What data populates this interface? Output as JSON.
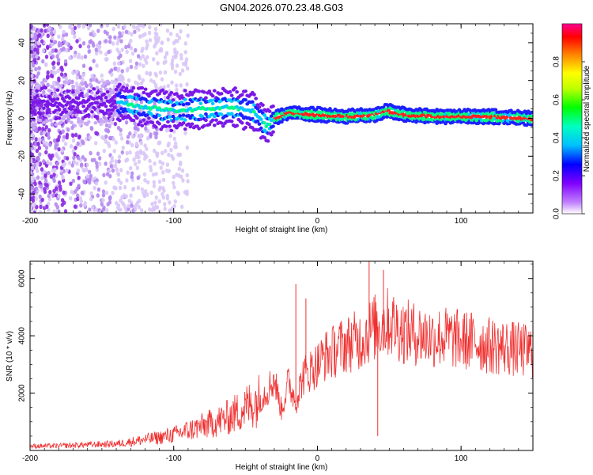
{
  "title": "GN04.2026.070.23.48.G03",
  "chart_data": [
    {
      "type": "heatmap",
      "name": "spectrogram",
      "xlabel": "Height of straight line (km)",
      "ylabel": "Frequency (Hz)",
      "xlim": [
        -200,
        150
      ],
      "ylim": [
        -50,
        50
      ],
      "xticks": [
        -200,
        -100,
        0,
        100
      ],
      "xtick_labels": [
        "-200",
        "-100",
        "0",
        "100"
      ],
      "yticks": [
        -40,
        -20,
        0,
        20,
        40
      ],
      "ytick_labels": [
        "-40",
        "-20",
        "0",
        "20",
        "40"
      ],
      "colorbar": {
        "label": "Normalized spectral amplitude",
        "range": [
          0.0,
          1.0
        ],
        "ticks": [
          0.0,
          0.2,
          0.4,
          0.6,
          0.8
        ],
        "tick_labels": [
          "0.0",
          "0.2",
          "0.4",
          "0.6",
          "0.8"
        ],
        "colors": [
          "#ffffff",
          "#a000ff",
          "#0000ff",
          "#00ffff",
          "#00ff00",
          "#ffff00",
          "#ff8000",
          "#ff0000",
          "#ff0090"
        ]
      },
      "ridge": {
        "x": [
          -135,
          -120,
          -100,
          -80,
          -60,
          -45,
          -38,
          -35,
          -30,
          -20,
          0,
          20,
          40,
          48,
          60,
          80,
          100,
          120,
          150
        ],
        "y": [
          8,
          6,
          4,
          5,
          6,
          4,
          -2,
          -4,
          0,
          3,
          2,
          1,
          2,
          4,
          2,
          1,
          1,
          1,
          0
        ]
      }
    },
    {
      "type": "line",
      "name": "snr",
      "xlabel": "Height of straight line (km)",
      "ylabel": "SNR (10 * v/v)",
      "xlim": [
        -200,
        150
      ],
      "ylim": [
        0,
        6600
      ],
      "xticks": [
        -200,
        -100,
        0,
        100
      ],
      "xtick_labels": [
        "-200",
        "-100",
        "0",
        "100"
      ],
      "yticks": [
        2000,
        4000,
        6000
      ],
      "ytick_labels": [
        "2000",
        "4000",
        "6000"
      ],
      "color": "#f03030",
      "series": [
        {
          "name": "SNR",
          "x": [
            -200,
            -180,
            -160,
            -140,
            -130,
            -120,
            -110,
            -100,
            -90,
            -80,
            -70,
            -60,
            -50,
            -40,
            -35,
            -30,
            -25,
            -20,
            -15,
            -10,
            -5,
            0,
            5,
            10,
            15,
            20,
            25,
            30,
            35,
            40,
            45,
            50,
            55,
            60,
            70,
            80,
            90,
            100,
            110,
            120,
            130,
            140,
            150
          ],
          "y": [
            150,
            160,
            200,
            230,
            300,
            380,
            450,
            550,
            700,
            850,
            1000,
            1200,
            1500,
            1800,
            2100,
            2500,
            1400,
            2400,
            1700,
            2600,
            2800,
            3000,
            3300,
            3400,
            3600,
            3700,
            3800,
            3850,
            4100,
            4300,
            4350,
            4500,
            4300,
            4150,
            4050,
            3950,
            3950,
            3850,
            3800,
            3650,
            3600,
            3500,
            3450
          ]
        }
      ],
      "spikes": [
        {
          "x": -15,
          "y": 5800
        },
        {
          "x": 36,
          "y": 6600
        },
        {
          "x": 46,
          "y": 6300
        },
        {
          "x": 42,
          "y": 500
        },
        {
          "x": -8,
          "y": 5300
        }
      ]
    }
  ]
}
